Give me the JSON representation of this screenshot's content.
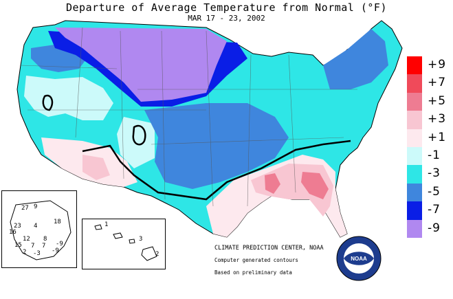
{
  "title": "Departure of Average Temperature from Normal (°F)",
  "subtitle": "MAR 17 - 23, 2002",
  "legend": [
    {
      "label": "+9",
      "color": "#ff0000"
    },
    {
      "label": "+7",
      "color": "#f04a5a"
    },
    {
      "label": "+5",
      "color": "#ee7c92"
    },
    {
      "label": "+3",
      "color": "#f8c6d2"
    },
    {
      "label": "+1",
      "color": "#fde9ee"
    },
    {
      "label": "-1",
      "color": "#ccfafa"
    },
    {
      "label": "-3",
      "color": "#2ee6e6"
    },
    {
      "label": "-5",
      "color": "#3f86dd"
    },
    {
      "label": "-7",
      "color": "#0a1ee6"
    },
    {
      "label": "-9",
      "color": "#b088f0"
    }
  ],
  "credit": "CLIMATE PREDICTION CENTER, NOAA",
  "note_contours": "Computer generated contours",
  "note_data": "Based on preliminary data",
  "logo_text": "NOAA",
  "alaska_values": [
    "27",
    "23",
    "9",
    "4",
    "18",
    "16",
    "12",
    "8",
    "15",
    "7",
    "7",
    "-9",
    "2",
    "-3",
    "-9"
  ],
  "hawaii_values": [
    "1",
    "3",
    "2"
  ]
}
